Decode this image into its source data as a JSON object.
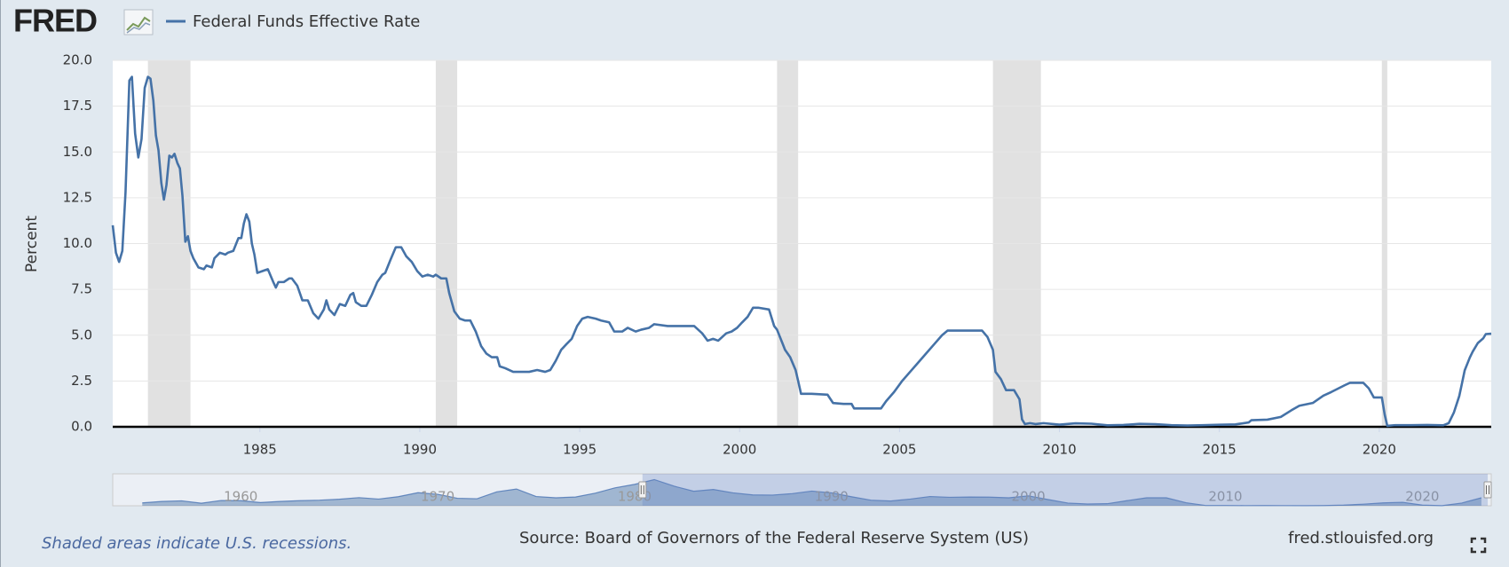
{
  "header": {
    "logo": "FRED"
  },
  "chart_data": {
    "type": "line",
    "y_label": "Percent",
    "x": [
      1980.4,
      1980.5,
      1980.6,
      1980.7,
      1980.8,
      1980.92,
      1981.0,
      1981.1,
      1981.2,
      1981.3,
      1981.4,
      1981.5,
      1981.58,
      1981.67,
      1981.75,
      1981.83,
      1981.92,
      1982.0,
      1982.08,
      1982.17,
      1982.25,
      1982.33,
      1982.42,
      1982.5,
      1982.58,
      1982.67,
      1982.75,
      1982.83,
      1982.92,
      1983.08,
      1983.25,
      1983.33,
      1983.5,
      1983.58,
      1983.75,
      1983.92,
      1984.0,
      1984.17,
      1984.33,
      1984.42,
      1984.5,
      1984.58,
      1984.67,
      1984.75,
      1984.83,
      1984.92,
      1985.08,
      1985.25,
      1985.42,
      1985.5,
      1985.58,
      1985.75,
      1985.92,
      1986.0,
      1986.17,
      1986.33,
      1986.5,
      1986.67,
      1986.83,
      1987.0,
      1987.08,
      1987.17,
      1987.33,
      1987.5,
      1987.67,
      1987.83,
      1987.92,
      1988.0,
      1988.17,
      1988.33,
      1988.5,
      1988.67,
      1988.83,
      1988.92,
      1989.08,
      1989.25,
      1989.42,
      1989.58,
      1989.75,
      1989.92,
      1990.08,
      1990.25,
      1990.42,
      1990.5,
      1990.67,
      1990.83,
      1990.92,
      1991.08,
      1991.25,
      1991.42,
      1991.58,
      1991.75,
      1991.92,
      1992.08,
      1992.25,
      1992.42,
      1992.5,
      1992.67,
      1992.92,
      1993.08,
      1993.42,
      1993.67,
      1993.92,
      1994.08,
      1994.25,
      1994.42,
      1994.58,
      1994.75,
      1994.92,
      1995.08,
      1995.25,
      1995.5,
      1995.67,
      1995.92,
      1996.08,
      1996.33,
      1996.5,
      1996.75,
      1996.92,
      1997.17,
      1997.33,
      1997.75,
      1998.0,
      1998.33,
      1998.58,
      1998.83,
      1999.0,
      1999.17,
      1999.33,
      1999.58,
      1999.75,
      1999.92,
      2000.08,
      2000.25,
      2000.42,
      2000.58,
      2000.92,
      2001.08,
      2001.17,
      2001.33,
      2001.42,
      2001.58,
      2001.75,
      2001.83,
      2001.92,
      2002.25,
      2002.75,
      2002.92,
      2003.25,
      2003.5,
      2003.58,
      2004.0,
      2004.42,
      2004.58,
      2004.83,
      2005.08,
      2005.33,
      2005.58,
      2005.83,
      2006.08,
      2006.33,
      2006.5,
      2007.58,
      2007.75,
      2007.92,
      2008.0,
      2008.17,
      2008.33,
      2008.58,
      2008.75,
      2008.83,
      2008.92,
      2009.08,
      2009.25,
      2009.5,
      2010.0,
      2010.5,
      2011.0,
      2011.5,
      2012.0,
      2012.5,
      2013.0,
      2013.5,
      2014.0,
      2014.5,
      2015.0,
      2015.5,
      2015.92,
      2016.0,
      2016.5,
      2016.92,
      2017.25,
      2017.5,
      2017.92,
      2018.25,
      2018.5,
      2018.92,
      2019.08,
      2019.5,
      2019.67,
      2019.83,
      2020.08,
      2020.17,
      2020.25,
      2020.5,
      2021.0,
      2021.5,
      2022.0,
      2022.17,
      2022.33,
      2022.5,
      2022.58,
      2022.67,
      2022.83,
      2022.92,
      2023.08,
      2023.25,
      2023.33,
      2023.5
    ],
    "series": [
      {
        "name": "Federal Funds Effective Rate",
        "color": "#4572a7",
        "values": [
          11.0,
          9.5,
          9.0,
          9.6,
          12.8,
          18.9,
          19.1,
          16.0,
          14.7,
          15.7,
          18.5,
          19.1,
          19.0,
          17.8,
          15.9,
          15.1,
          13.3,
          12.4,
          13.2,
          14.8,
          14.7,
          14.9,
          14.4,
          14.1,
          12.6,
          10.1,
          10.4,
          9.6,
          9.2,
          8.7,
          8.6,
          8.8,
          8.7,
          9.2,
          9.5,
          9.4,
          9.5,
          9.6,
          10.3,
          10.3,
          11.1,
          11.6,
          11.2,
          10.0,
          9.4,
          8.4,
          8.5,
          8.6,
          7.9,
          7.6,
          7.9,
          7.9,
          8.1,
          8.1,
          7.7,
          6.9,
          6.9,
          6.2,
          5.9,
          6.4,
          6.9,
          6.4,
          6.1,
          6.7,
          6.6,
          7.2,
          7.3,
          6.8,
          6.6,
          6.6,
          7.2,
          7.9,
          8.3,
          8.4,
          9.1,
          9.8,
          9.8,
          9.3,
          9.0,
          8.5,
          8.2,
          8.3,
          8.2,
          8.3,
          8.1,
          8.1,
          7.3,
          6.3,
          5.9,
          5.8,
          5.8,
          5.2,
          4.4,
          4.0,
          3.8,
          3.8,
          3.3,
          3.2,
          3.0,
          3.0,
          3.0,
          3.1,
          3.0,
          3.1,
          3.6,
          4.2,
          4.5,
          4.8,
          5.5,
          5.9,
          6.0,
          5.9,
          5.8,
          5.7,
          5.2,
          5.2,
          5.4,
          5.2,
          5.3,
          5.4,
          5.6,
          5.5,
          5.5,
          5.5,
          5.5,
          5.1,
          4.7,
          4.8,
          4.7,
          5.1,
          5.2,
          5.4,
          5.7,
          6.0,
          6.5,
          6.5,
          6.4,
          5.5,
          5.3,
          4.6,
          4.2,
          3.8,
          3.1,
          2.5,
          1.8,
          1.8,
          1.75,
          1.3,
          1.25,
          1.25,
          1.0,
          1.0,
          1.0,
          1.4,
          1.9,
          2.5,
          3.0,
          3.5,
          4.0,
          4.5,
          5.0,
          5.25,
          5.25,
          4.9,
          4.2,
          3.0,
          2.6,
          2.0,
          2.0,
          1.5,
          0.4,
          0.15,
          0.2,
          0.15,
          0.2,
          0.12,
          0.19,
          0.17,
          0.08,
          0.1,
          0.16,
          0.14,
          0.09,
          0.07,
          0.09,
          0.11,
          0.13,
          0.24,
          0.36,
          0.39,
          0.54,
          0.9,
          1.15,
          1.3,
          1.7,
          1.9,
          2.27,
          2.4,
          2.4,
          2.1,
          1.6,
          1.6,
          0.65,
          0.05,
          0.09,
          0.09,
          0.1,
          0.08,
          0.2,
          0.77,
          1.68,
          2.33,
          3.08,
          3.78,
          4.1,
          4.57,
          4.83,
          5.06,
          5.08
        ]
      }
    ],
    "recessions": [
      [
        1981.5,
        1982.83
      ],
      [
        1990.5,
        1991.17
      ],
      [
        2001.17,
        2001.83
      ],
      [
        2007.92,
        2009.42
      ],
      [
        2020.08,
        2020.25
      ]
    ],
    "recession_color": "#e1e1e1",
    "xlim": [
      1980.4,
      2023.5
    ],
    "xticks": [
      1985,
      1990,
      1995,
      2000,
      2005,
      2010,
      2015,
      2020
    ],
    "ylim": [
      0,
      20
    ],
    "yticks": [
      {
        "value": 0,
        "label": "0.0"
      },
      {
        "value": 2.5,
        "label": "2.5"
      },
      {
        "value": 5,
        "label": "5.0"
      },
      {
        "value": 7.5,
        "label": "7.5"
      },
      {
        "value": 10,
        "label": "10.0"
      },
      {
        "value": 12.5,
        "label": "12.5"
      },
      {
        "value": 15,
        "label": "15.0"
      },
      {
        "value": 17.5,
        "label": "17.5"
      },
      {
        "value": 20,
        "label": "20.0"
      }
    ],
    "grid": true,
    "navigator": {
      "x": [
        1955,
        1956,
        1957,
        1958,
        1959,
        1960,
        1961,
        1962,
        1963,
        1964,
        1965,
        1966,
        1967,
        1968,
        1969,
        1970,
        1971,
        1972,
        1973,
        1974,
        1975,
        1976,
        1977,
        1978,
        1979,
        1980,
        1981,
        1982,
        1983,
        1984,
        1985,
        1986,
        1987,
        1988,
        1989,
        1990,
        1991,
        1992,
        1993,
        1994,
        1995,
        1996,
        1997,
        1998,
        1999,
        2000,
        2001,
        2002,
        2003,
        2004,
        2005,
        2006,
        2007,
        2008,
        2009,
        2010,
        2011,
        2012,
        2013,
        2014,
        2015,
        2016,
        2017,
        2018,
        2019,
        2020,
        2021,
        2022,
        2023
      ],
      "values": [
        1.8,
        2.7,
        3.1,
        1.6,
        3.3,
        3.2,
        2.0,
        2.7,
        3.2,
        3.5,
        4.1,
        5.1,
        4.2,
        5.7,
        8.2,
        7.2,
        4.7,
        4.4,
        8.7,
        10.5,
        5.8,
        5.0,
        5.5,
        7.9,
        11.2,
        13.4,
        16.4,
        12.3,
        9.1,
        10.2,
        8.1,
        6.8,
        6.7,
        7.6,
        9.2,
        8.1,
        5.7,
        3.5,
        3.0,
        4.2,
        5.8,
        5.3,
        5.5,
        5.4,
        5.0,
        6.2,
        3.9,
        1.7,
        1.1,
        1.3,
        3.2,
        5.0,
        5.0,
        1.9,
        0.16,
        0.18,
        0.1,
        0.14,
        0.11,
        0.09,
        0.13,
        0.4,
        1.0,
        1.8,
        2.2,
        0.4,
        0.08,
        1.7,
        5.0
      ],
      "xlim": [
        1953.5,
        2023.5
      ],
      "ylim": [
        0,
        20
      ],
      "xticks": [
        1960,
        1970,
        1980,
        1990,
        2000,
        2010,
        2020
      ]
    }
  },
  "footer": {
    "note": "Shaded areas indicate U.S. recessions.",
    "source": "Source: Board of Governors of the Federal Reserve System (US)",
    "site": "fred.stlouisfed.org"
  }
}
